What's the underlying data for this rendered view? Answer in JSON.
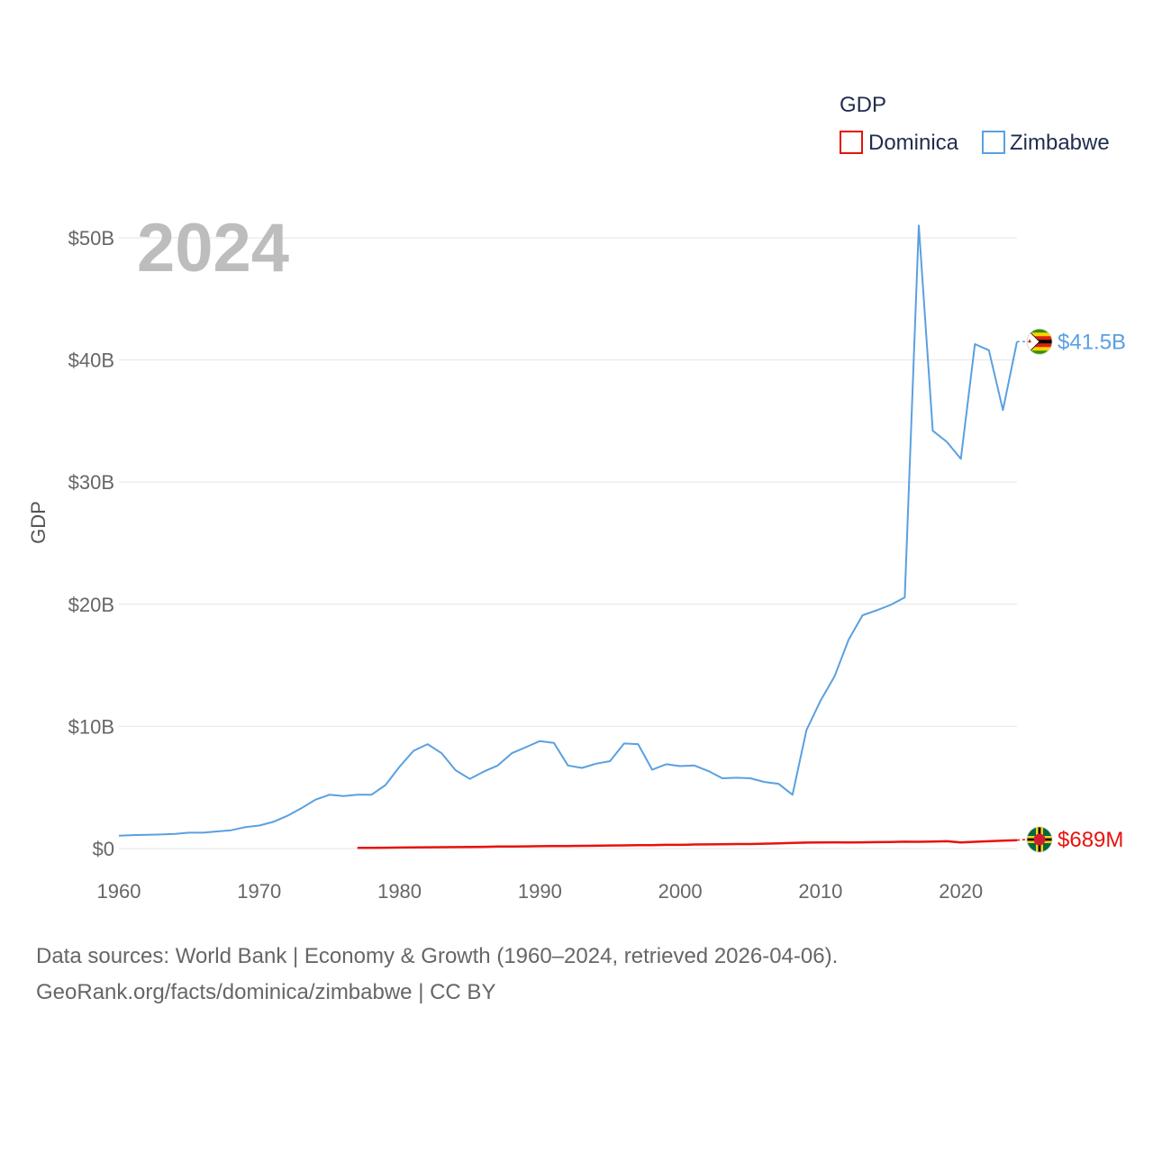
{
  "chart_data": {
    "type": "line",
    "year_label": "2024",
    "ylabel": "GDP",
    "legend_title": "GDP",
    "legend_position": "top-right",
    "xlim": [
      1960,
      2024
    ],
    "ylim": [
      0,
      52000000000
    ],
    "x_ticks": [
      1960,
      1970,
      1980,
      1990,
      2000,
      2010,
      2020
    ],
    "x_tick_labels": [
      "1960",
      "1970",
      "1980",
      "1990",
      "2000",
      "2010",
      "2020"
    ],
    "y_ticks": [
      0,
      10000000000,
      20000000000,
      30000000000,
      40000000000,
      50000000000
    ],
    "y_tick_labels": [
      "$0",
      "$10B",
      "$20B",
      "$30B",
      "$40B",
      "$50B"
    ],
    "series": [
      {
        "name": "Dominica",
        "color": "#e8120c",
        "end_label": "$689M",
        "flag": "dominica-flag-icon",
        "x": [
          1977,
          1978,
          1979,
          1980,
          1981,
          1982,
          1983,
          1984,
          1985,
          1986,
          1987,
          1988,
          1989,
          1990,
          1991,
          1992,
          1993,
          1994,
          1995,
          1996,
          1997,
          1998,
          1999,
          2000,
          2001,
          2002,
          2003,
          2004,
          2005,
          2006,
          2007,
          2008,
          2009,
          2010,
          2011,
          2012,
          2013,
          2014,
          2015,
          2016,
          2017,
          2018,
          2019,
          2020,
          2021,
          2022,
          2023,
          2024
        ],
        "values": [
          50000000,
          60000000,
          70000000,
          80000000,
          90000000,
          100000000,
          110000000,
          120000000,
          130000000,
          140000000,
          160000000,
          170000000,
          180000000,
          190000000,
          200000000,
          210000000,
          220000000,
          230000000,
          250000000,
          260000000,
          270000000,
          280000000,
          300000000,
          300000000,
          330000000,
          340000000,
          350000000,
          370000000,
          370000000,
          400000000,
          430000000,
          460000000,
          490000000,
          500000000,
          510000000,
          500000000,
          510000000,
          520000000,
          540000000,
          560000000,
          550000000,
          570000000,
          600000000,
          500000000,
          550000000,
          600000000,
          650000000,
          689000000
        ]
      },
      {
        "name": "Zimbabwe",
        "color": "#5aa0e0",
        "end_label": "$41.5B",
        "flag": "zimbabwe-flag-icon",
        "x": [
          1960,
          1961,
          1962,
          1963,
          1964,
          1965,
          1966,
          1967,
          1968,
          1969,
          1970,
          1971,
          1972,
          1973,
          1974,
          1975,
          1976,
          1977,
          1978,
          1979,
          1980,
          1981,
          1982,
          1983,
          1984,
          1985,
          1986,
          1987,
          1988,
          1989,
          1990,
          1991,
          1992,
          1993,
          1994,
          1995,
          1996,
          1997,
          1998,
          1999,
          2000,
          2001,
          2002,
          2003,
          2004,
          2005,
          2006,
          2007,
          2008,
          2009,
          2010,
          2011,
          2012,
          2013,
          2014,
          2015,
          2016,
          2017,
          2018,
          2019,
          2020,
          2021,
          2022,
          2023,
          2024
        ],
        "values": [
          1050000000,
          1100000000,
          1120000000,
          1150000000,
          1200000000,
          1300000000,
          1300000000,
          1400000000,
          1500000000,
          1750000000,
          1880000000,
          2180000000,
          2680000000,
          3300000000,
          4000000000,
          4400000000,
          4300000000,
          4400000000,
          4400000000,
          5200000000,
          6700000000,
          8000000000,
          8550000000,
          7800000000,
          6400000000,
          5700000000,
          6300000000,
          6800000000,
          7800000000,
          8300000000,
          8800000000,
          8650000000,
          6800000000,
          6600000000,
          6950000000,
          7150000000,
          8600000000,
          8550000000,
          6450000000,
          6900000000,
          6750000000,
          6800000000,
          6350000000,
          5750000000,
          5800000000,
          5750000000,
          5450000000,
          5300000000,
          4400000000,
          9700000000,
          12100000000,
          14100000000,
          17100000000,
          19100000000,
          19500000000,
          19950000000,
          20550000000,
          51000000000,
          34200000000,
          33300000000,
          31900000000,
          41300000000,
          40800000000,
          35900000000,
          41500000000
        ]
      }
    ]
  },
  "source": {
    "line1": "Data sources: World Bank | Economy & Growth (1960–2024, retrieved 2026-04-06).",
    "line2": "GeoRank.org/facts/dominica/zimbabwe | CC BY"
  }
}
